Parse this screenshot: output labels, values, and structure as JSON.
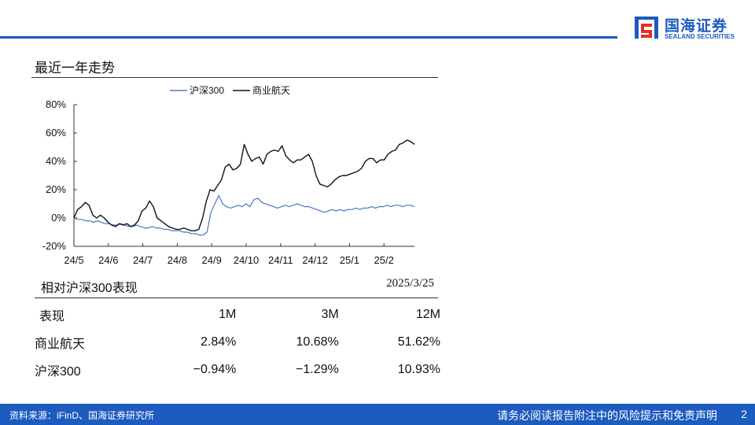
{
  "brand": {
    "name_cn": "国海证券",
    "name_en": "SEALAND SECURITIES"
  },
  "section": {
    "title": "最近一年走势"
  },
  "chart_data": {
    "type": "line",
    "title": "",
    "xlabel": "",
    "ylabel": "",
    "x_tick_labels": [
      "24/5",
      "24/6",
      "24/7",
      "24/8",
      "24/9",
      "24/10",
      "24/11",
      "24/12",
      "25/1",
      "25/2"
    ],
    "y_tick_labels": [
      "80%",
      "60%",
      "40%",
      "20%",
      "0%",
      "-20%"
    ],
    "ylim": [
      -20,
      80
    ],
    "legend_position": "top",
    "grid": false,
    "series": [
      {
        "name": "沪深300",
        "color": "#4a78c8",
        "values": [
          0,
          -1,
          -1,
          -2,
          -2,
          -3,
          -2,
          -3,
          -4,
          -4,
          -5,
          -5,
          -4,
          -5,
          -6,
          -6,
          -5,
          -6,
          -7,
          -7,
          -6,
          -7,
          -7,
          -8,
          -8,
          -9,
          -9,
          -9,
          -10,
          -10,
          -11,
          -11,
          -12,
          -12,
          -10,
          4,
          10,
          16,
          10,
          8,
          7,
          8,
          9,
          8,
          10,
          8,
          13,
          14,
          11,
          10,
          9,
          8,
          7,
          8,
          9,
          8,
          9,
          10,
          9,
          8,
          8,
          7,
          6,
          5,
          4,
          5,
          6,
          5,
          6,
          5,
          6,
          6,
          7,
          6,
          7,
          7,
          8,
          7,
          8,
          8,
          9,
          8,
          9,
          9,
          8,
          9,
          9,
          8
        ]
      },
      {
        "name": "商业航天",
        "color": "#111111",
        "values": [
          0,
          6,
          8,
          11,
          9,
          2,
          0,
          2,
          0,
          -3,
          -5,
          -6,
          -4,
          -5,
          -4,
          -6,
          -5,
          -2,
          5,
          7,
          12,
          8,
          0,
          -2,
          -4,
          -6,
          -7,
          -8,
          -8,
          -7,
          -8,
          -9,
          -9,
          -8,
          0,
          12,
          20,
          19,
          23,
          27,
          36,
          38,
          34,
          35,
          38,
          52,
          45,
          40,
          42,
          43,
          38,
          45,
          47,
          48,
          47,
          51,
          44,
          41,
          39,
          41,
          41,
          43,
          45,
          40,
          30,
          24,
          23,
          22,
          24,
          27,
          29,
          30,
          30,
          31,
          32,
          33,
          35,
          40,
          42,
          42,
          39,
          41,
          41,
          45,
          47,
          48,
          52,
          53,
          55,
          54,
          52
        ]
      }
    ]
  },
  "performance": {
    "title": "相对沪深300表现",
    "date": "2025/3/25",
    "header": [
      "表现",
      "1M",
      "3M",
      "12M"
    ],
    "rows": [
      [
        "商业航天",
        "2.84%",
        "10.68%",
        "51.62%"
      ],
      [
        "沪深300",
        "−0.94%",
        "−1.29%",
        "10.93%"
      ]
    ]
  },
  "footer": {
    "source": "资料来源：iFinD、国海证券研究所",
    "disclaimer": "请务必阅读报告附注中的风险提示和免责声明",
    "page": "2"
  }
}
